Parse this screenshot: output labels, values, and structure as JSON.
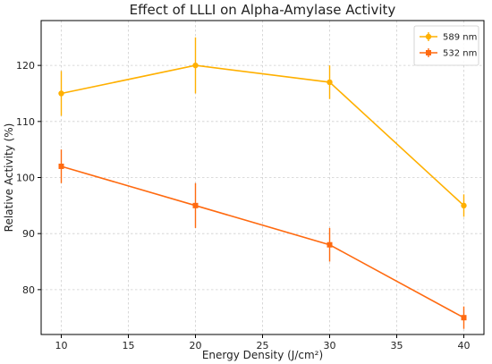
{
  "chart_data": {
    "type": "line",
    "title": "Effect of LLLI on Alpha-Amylase Activity",
    "xlabel": "Energy Density (J/cm²)",
    "ylabel": "Relative Activity (%)",
    "xlim": [
      8.5,
      41.5
    ],
    "ylim": [
      72,
      128
    ],
    "xticks": [
      10,
      15,
      20,
      25,
      30,
      35,
      40
    ],
    "yticks": [
      80,
      90,
      100,
      110,
      120
    ],
    "grid": true,
    "legend_position": "top-right",
    "series": [
      {
        "name": "589 nm",
        "color": "#FFB000",
        "marker": "circle",
        "x": [
          10,
          20,
          30,
          40
        ],
        "y": [
          115,
          120,
          117,
          95
        ],
        "yerr": [
          4,
          5,
          3,
          2
        ]
      },
      {
        "name": "532 nm",
        "color": "#FF6A10",
        "marker": "square",
        "x": [
          10,
          20,
          30,
          40
        ],
        "y": [
          102,
          95,
          88,
          75
        ],
        "yerr": [
          3,
          4,
          3,
          2
        ]
      }
    ]
  }
}
